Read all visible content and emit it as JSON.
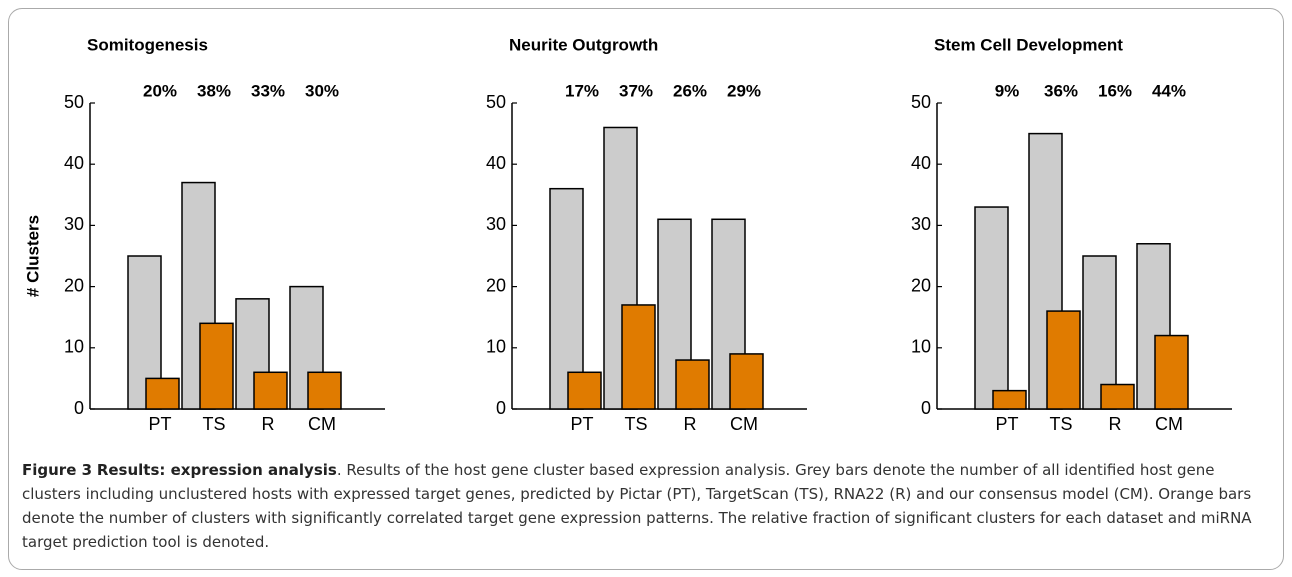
{
  "chart_data": [
    {
      "type": "bar",
      "title": "Somitogenesis",
      "ylabel": "# Clusters",
      "categories": [
        "PT",
        "TS",
        "R",
        "CM"
      ],
      "series": [
        {
          "color": "#cccccc",
          "values": [
            25,
            37,
            18,
            20
          ]
        },
        {
          "color": "#e07b00",
          "values": [
            5,
            14,
            6,
            6
          ]
        }
      ],
      "annotations": [
        "20%",
        "38%",
        "33%",
        "30%"
      ],
      "ylim": [
        0,
        50
      ],
      "yticks": [
        0,
        10,
        20,
        30,
        40,
        50
      ]
    },
    {
      "type": "bar",
      "title": "Neurite Outgrowth",
      "categories": [
        "PT",
        "TS",
        "R",
        "CM"
      ],
      "series": [
        {
          "color": "#cccccc",
          "values": [
            36,
            46,
            31,
            31
          ]
        },
        {
          "color": "#e07b00",
          "values": [
            6,
            17,
            8,
            9
          ]
        }
      ],
      "annotations": [
        "17%",
        "37%",
        "26%",
        "29%"
      ],
      "ylim": [
        0,
        50
      ],
      "yticks": [
        0,
        10,
        20,
        30,
        40,
        50
      ]
    },
    {
      "type": "bar",
      "title": "Stem Cell Development",
      "categories": [
        "PT",
        "TS",
        "R",
        "CM"
      ],
      "series": [
        {
          "color": "#cccccc",
          "values": [
            33,
            45,
            25,
            27
          ]
        },
        {
          "color": "#e07b00",
          "values": [
            3,
            16,
            4,
            12
          ]
        }
      ],
      "annotations": [
        "9%",
        "36%",
        "16%",
        "44%"
      ],
      "ylim": [
        0,
        50
      ],
      "yticks": [
        0,
        10,
        20,
        30,
        40,
        50
      ]
    }
  ],
  "caption": {
    "label": "Figure 3",
    "title": "Results: expression analysis",
    "text": ". Results of the host gene cluster based expression analysis. Grey bars denote the number of all identified host gene clusters including unclustered hosts with expressed target genes, predicted by Pictar (PT), TargetScan (TS), RNA22 (R) and our consensus model (CM). Orange bars denote the number of clusters with significantly correlated target gene expression patterns. The relative fraction of significant clusters for each dataset and miRNA target prediction tool is denoted."
  }
}
